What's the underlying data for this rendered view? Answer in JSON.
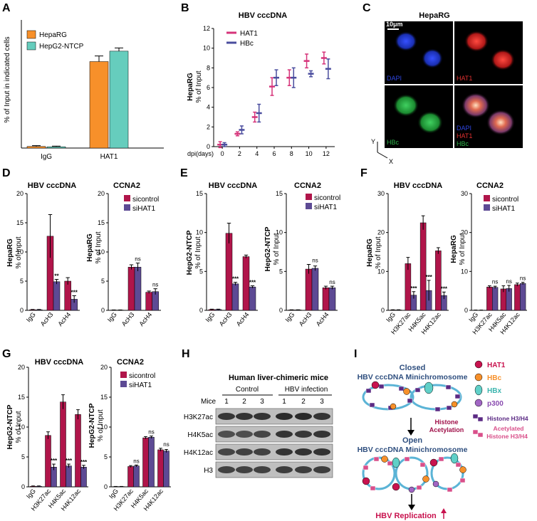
{
  "colors": {
    "hepaRG": "#F7902A",
    "hepg2": "#66CDBD",
    "hat1": "#D6347A",
    "hbc": "#4A4D9E",
    "sicontrol": "#B0154A",
    "sihat1": "#5D4A94",
    "dapi": "#2E45E0",
    "hat1stain": "#E03030",
    "hbcstain": "#2FB34A",
    "p300": "#A166C4",
    "hbx": "#60D0C8",
    "red": "#C8124E"
  },
  "panels": {
    "A": {
      "label": "A",
      "ylabel": "% of Input in indicated cells",
      "legend": [
        "HepaRG",
        "HepG2-NTCP"
      ],
      "chart_data": {
        "type": "bar",
        "categories": [
          "IgG",
          "HAT1"
        ],
        "series": [
          {
            "name": "HepaRG",
            "values": [
              0.1,
              5.4
            ],
            "err": [
              0.05,
              0.35
            ]
          },
          {
            "name": "HepG2-NTCP",
            "values": [
              0.08,
              6.05
            ],
            "err": [
              0.04,
              0.2
            ]
          }
        ],
        "ylim": [
          0,
          8
        ],
        "yticks": [
          0,
          2,
          4,
          6,
          8
        ]
      }
    },
    "B": {
      "label": "B",
      "title": "HBV cccDNA",
      "ylabel1": "HepaRG",
      "ylabel2": "% of Input",
      "xlabel": "dpi(days)",
      "legend": [
        "HAT1",
        "HBc"
      ],
      "chart_data": {
        "type": "scatter",
        "x": [
          0,
          2,
          4,
          6,
          8,
          10,
          12
        ],
        "series": [
          {
            "name": "HAT1",
            "values": [
              0.2,
              1.3,
              3.0,
              6.1,
              7.0,
              8.7,
              9.0
            ],
            "err": [
              0.3,
              0.2,
              0.5,
              0.9,
              0.8,
              0.7,
              0.6
            ]
          },
          {
            "name": "HBc",
            "values": [
              0.2,
              1.7,
              3.4,
              7.0,
              7.0,
              7.4,
              7.9
            ],
            "err": [
              0.2,
              0.4,
              0.9,
              0.8,
              1.0,
              0.3,
              1.0
            ]
          }
        ],
        "xlim": [
          -1,
          13
        ],
        "xticks": [
          0,
          2,
          4,
          6,
          8,
          10,
          12
        ],
        "ylim": [
          0,
          12
        ],
        "yticks": [
          0,
          2,
          4,
          6,
          8,
          10,
          12
        ]
      }
    },
    "C": {
      "label": "C",
      "title": "HepaRG",
      "scale": "10μm",
      "tiles": [
        "DAPI",
        "HAT1",
        "HBc"
      ],
      "merge": [
        "DAPI",
        "HAT1",
        "HBc"
      ],
      "axis_y": "Y",
      "axis_x": "X"
    },
    "D": {
      "label": "D",
      "ylabel1": "HepaRG",
      "ylabel2": "% of Input",
      "legend": [
        "sicontrol",
        "siHAT1"
      ],
      "left": {
        "chart_data": {
          "type": "bar",
          "title": "HBV cccDNA",
          "categories": [
            "IgG",
            "AcH3",
            "AcH4"
          ],
          "series": [
            {
              "name": "sicontrol",
              "values": [
                0.1,
                12.7,
                5.0
              ],
              "err": [
                0.05,
                3.7,
                0.6
              ]
            },
            {
              "name": "siHAT1",
              "values": [
                0.1,
                4.9,
                1.9
              ],
              "err": [
                0.05,
                0.4,
                0.6
              ]
            }
          ],
          "ylim": [
            0,
            20
          ],
          "yticks": [
            0,
            5,
            10,
            15,
            20
          ],
          "sig": [
            "",
            "**",
            "***"
          ]
        }
      },
      "right": {
        "chart_data": {
          "type": "bar",
          "title": "CCNA2",
          "categories": [
            "IgG",
            "AcH3",
            "AcH4"
          ],
          "series": [
            {
              "name": "sicontrol",
              "values": [
                0.05,
                7.4,
                3.1
              ],
              "err": [
                0.02,
                0.4,
                0.2
              ]
            },
            {
              "name": "siHAT1",
              "values": [
                0.05,
                7.4,
                3.2
              ],
              "err": [
                0.02,
                0.7,
                0.5
              ]
            }
          ],
          "ylim": [
            0,
            20
          ],
          "yticks": [
            0,
            5,
            10,
            15,
            20
          ],
          "sig": [
            "",
            "ns",
            "ns"
          ]
        }
      }
    },
    "E": {
      "label": "E",
      "ylabel1": "HepG2-NTCP",
      "ylabel2": "% of Input",
      "legend": [
        "sicontrol",
        "siHAT1"
      ],
      "left": {
        "chart_data": {
          "type": "bar",
          "title": "HBV cccDNA",
          "categories": [
            "IgG",
            "AcH3",
            "AcH4"
          ],
          "series": [
            {
              "name": "sicontrol",
              "values": [
                0.1,
                9.9,
                6.9
              ],
              "err": [
                0.05,
                1.3,
                0.2
              ]
            },
            {
              "name": "siHAT1",
              "values": [
                0.1,
                3.4,
                3.0
              ],
              "err": [
                0.05,
                0.2,
                0.15
              ]
            }
          ],
          "ylim": [
            0,
            15
          ],
          "yticks": [
            0,
            5,
            10,
            15
          ],
          "sig": [
            "",
            "***",
            "***"
          ]
        }
      },
      "right": {
        "chart_data": {
          "type": "bar",
          "title": "CCNA2",
          "categories": [
            "IgG",
            "AcH3",
            "AcH4"
          ],
          "series": [
            {
              "name": "sicontrol",
              "values": [
                0.05,
                5.3,
                2.9
              ],
              "err": [
                0.02,
                0.6,
                0.2
              ]
            },
            {
              "name": "siHAT1",
              "values": [
                0.05,
                5.4,
                2.9
              ],
              "err": [
                0.02,
                0.3,
                0.2
              ]
            }
          ],
          "ylim": [
            0,
            15
          ],
          "yticks": [
            0,
            5,
            10,
            15
          ],
          "sig": [
            "",
            "ns",
            "ns"
          ]
        }
      }
    },
    "F": {
      "label": "F",
      "ylabel1": "HepaRG",
      "ylabel2": "% of Input",
      "legend": [
        "sicontrol",
        "siHAT1"
      ],
      "left": {
        "chart_data": {
          "type": "bar",
          "title": "HBV cccDNA",
          "categories": [
            "IgG",
            "H3K27ac",
            "H4K5ac",
            "H4K12ac"
          ],
          "series": [
            {
              "name": "sicontrol",
              "values": [
                0.1,
                12.0,
                22.5,
                15.3
              ],
              "err": [
                0.05,
                1.6,
                1.8,
                0.8
              ]
            },
            {
              "name": "siHAT1",
              "values": [
                0.1,
                3.9,
                5.1,
                3.8
              ],
              "err": [
                0.05,
                0.9,
                2.6,
                0.9
              ]
            }
          ],
          "ylim": [
            0,
            30
          ],
          "yticks": [
            0,
            10,
            20,
            30
          ],
          "sig": [
            "",
            "***",
            "***",
            "***"
          ]
        }
      },
      "right": {
        "chart_data": {
          "type": "bar",
          "title": "CCNA2",
          "categories": [
            "IgG",
            "H3K27ac",
            "H4K5ac",
            "H4K12ac"
          ],
          "series": [
            {
              "name": "sicontrol",
              "values": [
                0.05,
                6.0,
                5.5,
                6.6
              ],
              "err": [
                0.02,
                0.3,
                0.8,
                0.4
              ]
            },
            {
              "name": "siHAT1",
              "values": [
                0.05,
                5.9,
                5.6,
                6.9
              ],
              "err": [
                0.02,
                0.3,
                0.8,
                0.3
              ]
            }
          ],
          "ylim": [
            0,
            30
          ],
          "yticks": [
            0,
            10,
            20,
            30
          ],
          "sig": [
            "",
            "ns",
            "ns",
            "ns"
          ]
        }
      }
    },
    "G": {
      "label": "G",
      "ylabel1": "HepG2-NTCP",
      "ylabel2": "% of Input",
      "legend": [
        "sicontrol",
        "siHAT1"
      ],
      "left": {
        "chart_data": {
          "type": "bar",
          "title": "HBV cccDNA",
          "categories": [
            "IgG",
            "H3K27ac",
            "H4K5ac",
            "H4K12ac"
          ],
          "series": [
            {
              "name": "sicontrol",
              "values": [
                0.1,
                8.6,
                14.2,
                12.1
              ],
              "err": [
                0.05,
                0.6,
                1.2,
                0.8
              ]
            },
            {
              "name": "siHAT1",
              "values": [
                0.1,
                3.3,
                3.5,
                3.3
              ],
              "err": [
                0.05,
                0.5,
                0.3,
                0.3
              ]
            }
          ],
          "ylim": [
            0,
            20
          ],
          "yticks": [
            0,
            5,
            10,
            15,
            20
          ],
          "sig": [
            "",
            "***",
            "***",
            "***"
          ]
        }
      },
      "right": {
        "chart_data": {
          "type": "bar",
          "title": "CCNA2",
          "categories": [
            "IgG",
            "H3K27ac",
            "H4K5ac",
            "H4K12ac"
          ],
          "series": [
            {
              "name": "sicontrol",
              "values": [
                0.05,
                3.4,
                8.2,
                6.2
              ],
              "err": [
                0.02,
                0.15,
                0.2,
                0.25
              ]
            },
            {
              "name": "siHAT1",
              "values": [
                0.05,
                3.5,
                8.3,
                6.0
              ],
              "err": [
                0.02,
                0.15,
                0.2,
                0.25
              ]
            }
          ],
          "ylim": [
            0,
            20
          ],
          "yticks": [
            0,
            5,
            10,
            15,
            20
          ],
          "sig": [
            "",
            "ns",
            "ns",
            "ns"
          ]
        }
      }
    },
    "H": {
      "label": "H",
      "title": "Human liver-chimeric mice",
      "groups": [
        "Control",
        "HBV infection"
      ],
      "mice_label": "Mice",
      "lanes": [
        "1",
        "2",
        "3",
        "1",
        "2",
        "3"
      ],
      "rows": [
        "H3K27ac",
        "H4K5ac",
        "H4K12ac",
        "H3"
      ]
    },
    "I": {
      "label": "I",
      "top_title1": "Closed",
      "top_title2": "HBV cccDNA Minichromosome",
      "arrow_text1": "Histone",
      "arrow_text2": "Acetylation",
      "mid_title1": "Open",
      "mid_title2": "HBV cccDNA Minichromosome",
      "bottom": "HBV Replication",
      "legend": [
        "HAT1",
        "HBc",
        "HBx",
        "p300",
        "Histone H3/H4",
        "Acetylated",
        "Histone H3/H4"
      ]
    }
  }
}
